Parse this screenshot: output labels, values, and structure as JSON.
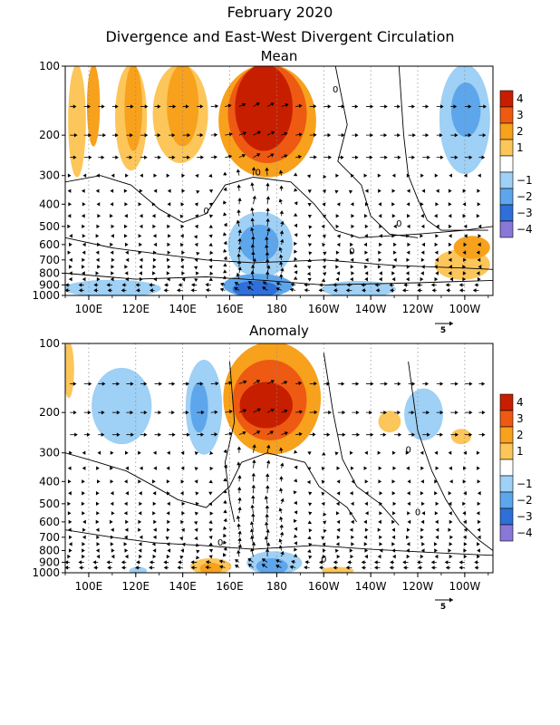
{
  "figure": {
    "title": "February 2020",
    "subtitle": "Divergence and East-West Divergent Circulation"
  },
  "colors": {
    "div_4": "#c81e00",
    "div_3": "#ee5a12",
    "div_2": "#f7a11c",
    "div_1": "#fcc65a",
    "neg_1": "#9fd0f5",
    "neg_2": "#5ea6ec",
    "neg_3": "#2f6fd9",
    "neg_4": "#8a78d8",
    "contour": "#000000",
    "grid": "#888888"
  },
  "chart_data": [
    {
      "type": "heatmap",
      "panel": "mean",
      "title": "Mean",
      "x_ticks": [
        "100E",
        "120E",
        "140E",
        "160E",
        "180",
        "160W",
        "140W",
        "120W",
        "100W"
      ],
      "x_range_deg_east": [
        90,
        272
      ],
      "y_ticks": [
        "100",
        "200",
        "300",
        "400",
        "500",
        "600",
        "700",
        "800",
        "900",
        "1000"
      ],
      "y_tick_values_hpa": [
        100,
        200,
        300,
        400,
        500,
        600,
        700,
        800,
        900,
        1000
      ],
      "y_range_hpa": [
        100,
        1000
      ],
      "y_scale": "log",
      "colorbar_levels": [
        "4",
        "3",
        "2",
        "1",
        "−1",
        "−2",
        "−3",
        "−4"
      ],
      "contour_labels": [
        "0",
        "0",
        "0",
        "0",
        "0"
      ],
      "reference_vector": "5",
      "regions": [
        {
          "lon": [
            92,
            98
          ],
          "p": [
            100,
            300
          ],
          "level": 1
        },
        {
          "lon": [
            100,
            104
          ],
          "p": [
            100,
            220
          ],
          "level": 2
        },
        {
          "lon": [
            112,
            124
          ],
          "p": [
            100,
            280
          ],
          "level": 1
        },
        {
          "lon": [
            116,
            122
          ],
          "p": [
            100,
            230
          ],
          "level": 2
        },
        {
          "lon": [
            128,
            150
          ],
          "p": [
            100,
            260
          ],
          "level": 1
        },
        {
          "lon": [
            134,
            146
          ],
          "p": [
            100,
            220
          ],
          "level": 2
        },
        {
          "lon": [
            156,
            196
          ],
          "p": [
            100,
            300
          ],
          "level": 2
        },
        {
          "lon": [
            160,
            192
          ],
          "p": [
            100,
            260
          ],
          "level": 3
        },
        {
          "lon": [
            163,
            186
          ],
          "p": [
            100,
            230
          ],
          "level": 4
        },
        {
          "lon": [
            250,
            270
          ],
          "p": [
            100,
            290
          ],
          "level": -1
        },
        {
          "lon": [
            255,
            266
          ],
          "p": [
            120,
            200
          ],
          "level": -2
        },
        {
          "lon": [
            160,
            186
          ],
          "p": [
            440,
            820
          ],
          "level": -1
        },
        {
          "lon": [
            165,
            180
          ],
          "p": [
            500,
            700
          ],
          "level": -2
        },
        {
          "lon": [
            158,
            186
          ],
          "p": [
            820,
            1000
          ],
          "level": -2
        },
        {
          "lon": [
            162,
            180
          ],
          "p": [
            880,
            1000
          ],
          "level": -3
        },
        {
          "lon": [
            90,
            130
          ],
          "p": [
            870,
            1000
          ],
          "level": -1
        },
        {
          "lon": [
            200,
            230
          ],
          "p": [
            880,
            1000
          ],
          "level": -1
        },
        {
          "lon": [
            248,
            270
          ],
          "p": [
            640,
            840
          ],
          "level": 1
        },
        {
          "lon": [
            256,
            270
          ],
          "p": [
            560,
            680
          ],
          "level": 2
        }
      ]
    },
    {
      "type": "heatmap",
      "panel": "anomaly",
      "title": "Anomaly",
      "x_ticks": [
        "100E",
        "120E",
        "140E",
        "160E",
        "180",
        "160W",
        "140W",
        "120W",
        "100W"
      ],
      "x_range_deg_east": [
        90,
        272
      ],
      "y_ticks": [
        "100",
        "200",
        "300",
        "400",
        "500",
        "600",
        "700",
        "800",
        "900",
        "1000"
      ],
      "y_tick_values_hpa": [
        100,
        200,
        300,
        400,
        500,
        600,
        700,
        800,
        900,
        1000
      ],
      "y_range_hpa": [
        100,
        1000
      ],
      "y_scale": "log",
      "colorbar_levels": [
        "4",
        "3",
        "2",
        "1",
        "−1",
        "−2",
        "−3",
        "−4"
      ],
      "contour_labels": [
        "0",
        "0",
        "0",
        "0"
      ],
      "reference_vector": "5",
      "regions": [
        {
          "lon": [
            90,
            93
          ],
          "p": [
            100,
            170
          ],
          "level": 1
        },
        {
          "lon": [
            102,
            126
          ],
          "p": [
            130,
            270
          ],
          "level": -1
        },
        {
          "lon": [
            142,
            156
          ],
          "p": [
            120,
            300
          ],
          "level": -1
        },
        {
          "lon": [
            144,
            150
          ],
          "p": [
            150,
            240
          ],
          "level": -2
        },
        {
          "lon": [
            158,
            198
          ],
          "p": [
            100,
            300
          ],
          "level": 2
        },
        {
          "lon": [
            162,
            192
          ],
          "p": [
            120,
            260
          ],
          "level": 3
        },
        {
          "lon": [
            165,
            186
          ],
          "p": [
            150,
            230
          ],
          "level": 4
        },
        {
          "lon": [
            224,
            232
          ],
          "p": [
            200,
            240
          ],
          "level": 1
        },
        {
          "lon": [
            235,
            250
          ],
          "p": [
            160,
            260
          ],
          "level": -1
        },
        {
          "lon": [
            255,
            262
          ],
          "p": [
            240,
            270
          ],
          "level": 1
        },
        {
          "lon": [
            168,
            190
          ],
          "p": [
            820,
            1000
          ],
          "level": -1
        },
        {
          "lon": [
            172,
            184
          ],
          "p": [
            880,
            1000
          ],
          "level": -2
        },
        {
          "lon": [
            144,
            160
          ],
          "p": [
            880,
            1000
          ],
          "level": 1
        },
        {
          "lon": [
            148,
            156
          ],
          "p": [
            920,
            1000
          ],
          "level": 2
        },
        {
          "lon": [
            118,
            124
          ],
          "p": [
            960,
            1000
          ],
          "level": -1
        },
        {
          "lon": [
            200,
            212
          ],
          "p": [
            960,
            1000
          ],
          "level": 1
        }
      ]
    }
  ]
}
